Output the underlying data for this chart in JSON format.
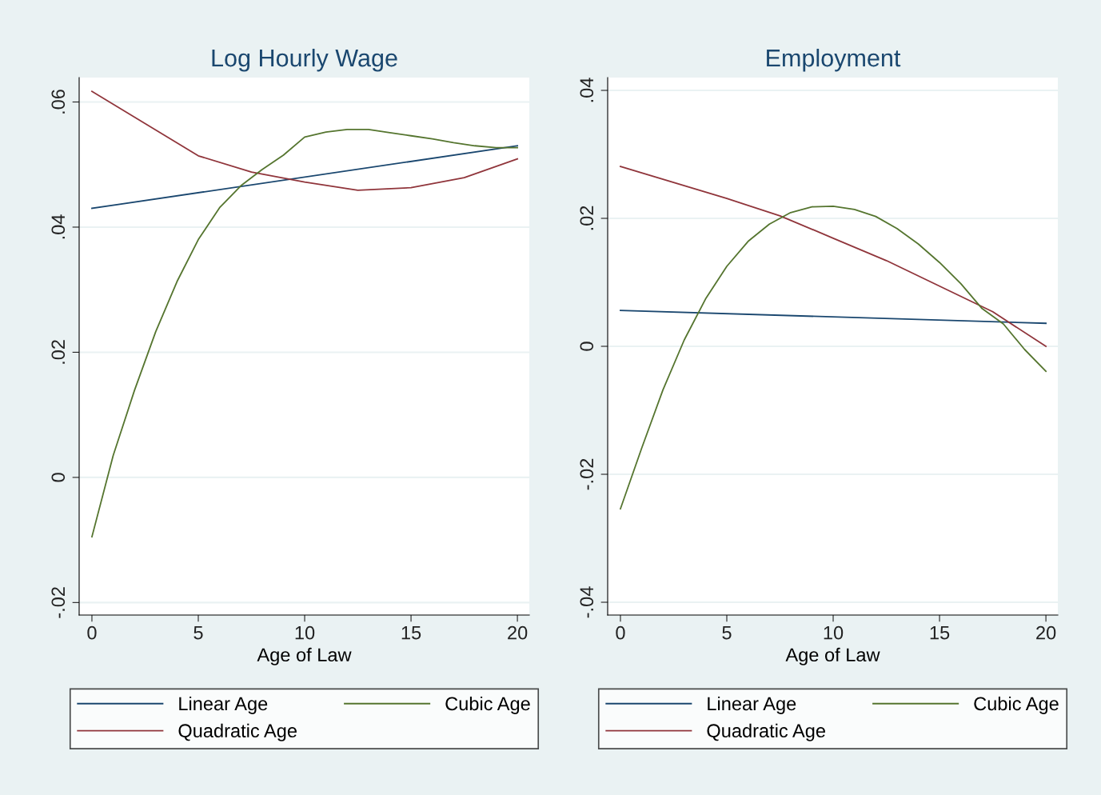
{
  "chart_data": [
    {
      "type": "line",
      "title": "Log Hourly Wage",
      "xlabel": "Age of Law",
      "xlim": [
        -0.6,
        20.56
      ],
      "xticks": [
        0,
        5,
        10,
        15,
        20
      ],
      "ylim": [
        -0.022,
        0.0639
      ],
      "yticks": [
        {
          "value": -0.02,
          "label": "-.02"
        },
        {
          "value": 0,
          "label": "0"
        },
        {
          "value": 0.02,
          "label": ".02"
        },
        {
          "value": 0.04,
          "label": ".04"
        },
        {
          "value": 0.06,
          "label": ".06"
        }
      ],
      "grid": "y",
      "legend": "bottom",
      "marker": "none",
      "line_style": "solid",
      "series": [
        {
          "name": "Linear Age",
          "color": "#1a476f",
          "x": [
            0,
            20
          ],
          "values": [
            0.043,
            0.053
          ]
        },
        {
          "name": "Quadratic Age",
          "color": "#90353b",
          "x": [
            0,
            5,
            7.5,
            10,
            12.5,
            15,
            17.5,
            20
          ],
          "values": [
            0.0617,
            0.0514,
            0.0488,
            0.0472,
            0.0459,
            0.0463,
            0.0479,
            0.0509
          ]
        },
        {
          "name": "Cubic Age",
          "color": "#55752f",
          "x": [
            0,
            1,
            2,
            3,
            4,
            5,
            6,
            7,
            8,
            9,
            10,
            11,
            12,
            13,
            14,
            15,
            16,
            17,
            18,
            19,
            20
          ],
          "values": [
            -0.0095,
            0.0035,
            0.0139,
            0.0233,
            0.0313,
            0.038,
            0.0431,
            0.0466,
            0.0492,
            0.0515,
            0.0544,
            0.0552,
            0.0556,
            0.0556,
            0.0551,
            0.0546,
            0.0541,
            0.0535,
            0.053,
            0.0527,
            0.0527
          ]
        }
      ]
    },
    {
      "type": "line",
      "title": "Employment",
      "xlabel": "Age of Law",
      "xlim": [
        -0.6,
        20.56
      ],
      "xticks": [
        0,
        5,
        10,
        15,
        20
      ],
      "ylim": [
        -0.042,
        0.042
      ],
      "yticks": [
        {
          "value": -0.04,
          "label": "-.04"
        },
        {
          "value": -0.02,
          "label": "-.02"
        },
        {
          "value": 0,
          "label": "0"
        },
        {
          "value": 0.02,
          "label": ".02"
        },
        {
          "value": 0.04,
          "label": ".04"
        }
      ],
      "grid": "y",
      "legend": "bottom",
      "marker": "none",
      "line_style": "solid",
      "series": [
        {
          "name": "Linear Age",
          "color": "#1a476f",
          "x": [
            0,
            20
          ],
          "values": [
            0.0056,
            0.0036
          ]
        },
        {
          "name": "Quadratic Age",
          "color": "#90353b",
          "x": [
            0,
            5,
            7.5,
            10,
            12.5,
            15,
            17.5,
            20
          ],
          "values": [
            0.0281,
            0.0231,
            0.0204,
            0.0169,
            0.0134,
            0.0094,
            0.0054,
            0.0
          ]
        },
        {
          "name": "Cubic Age",
          "color": "#55752f",
          "x": [
            0,
            1,
            2,
            3,
            4,
            5,
            6,
            7,
            8,
            9,
            10,
            11,
            12,
            13,
            14,
            15,
            16,
            17,
            18,
            19,
            20
          ],
          "values": [
            -0.0254,
            -0.0159,
            -0.0068,
            0.001,
            0.0074,
            0.0125,
            0.0164,
            0.0191,
            0.0209,
            0.0218,
            0.0219,
            0.0214,
            0.0203,
            0.0184,
            0.016,
            0.0131,
            0.0098,
            0.0059,
            0.0035,
            -0.0005,
            -0.0039
          ]
        }
      ]
    }
  ]
}
